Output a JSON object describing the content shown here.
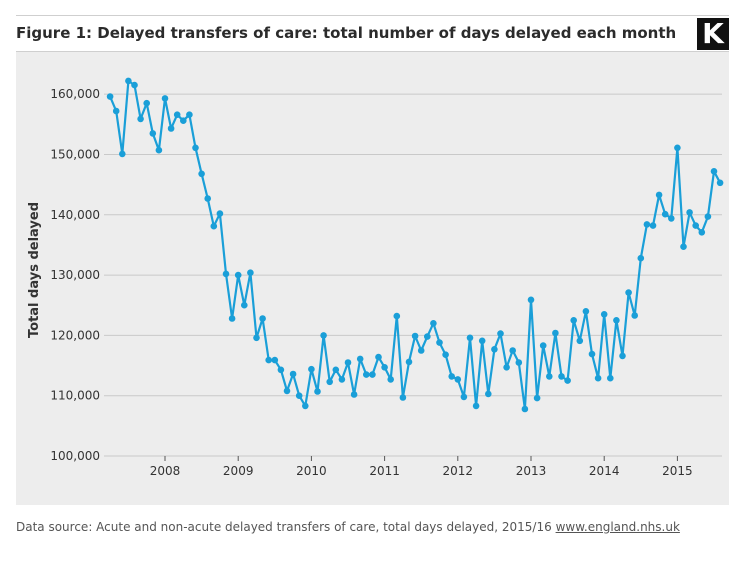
{
  "header": {
    "title": "Figure 1: Delayed transfers of care: total number of days delayed each month",
    "logo_letter": "K"
  },
  "footer": {
    "source_text": "Data source: Acute and non-acute delayed transfers of care, total days delayed, 2015/16",
    "link_text": "www.england.nhs.uk"
  },
  "colors": {
    "line": "#1a9fd8",
    "grid": "#c9c9c9",
    "background": "#ededed"
  },
  "chart_data": {
    "type": "line",
    "title": "Figure 1: Delayed transfers of care: total number of days delayed each month",
    "xlabel": "",
    "ylabel": "Total days delayed",
    "ylim": [
      100000,
      165000
    ],
    "yticks": [
      100000,
      110000,
      120000,
      130000,
      140000,
      150000,
      160000
    ],
    "ytick_labels": [
      "100,000",
      "110,000",
      "120,000",
      "130,000",
      "140,000",
      "150,000",
      "160,000"
    ],
    "xticks": [
      "2008",
      "2009",
      "2010",
      "2011",
      "2012",
      "2013",
      "2014",
      "2015"
    ],
    "start": "2007-04",
    "frequency": "monthly",
    "grid": true,
    "series": [
      {
        "name": "Total days delayed",
        "values": [
          159600,
          157200,
          150100,
          162200,
          161500,
          155900,
          158500,
          153500,
          150700,
          159300,
          154300,
          156600,
          155600,
          156600,
          151100,
          146800,
          142700,
          138100,
          140200,
          130200,
          122800,
          130000,
          125000,
          130400,
          119600,
          122800,
          115900,
          115900,
          114300,
          110800,
          113600,
          110000,
          108300,
          114400,
          110700,
          120000,
          112300,
          114300,
          112700,
          115500,
          110200,
          116100,
          113500,
          113500,
          116400,
          114700,
          112700,
          123200,
          109700,
          115600,
          119900,
          117500,
          119800,
          122000,
          118800,
          116800,
          113200,
          112700,
          109800,
          119600,
          108300,
          119100,
          110300,
          117700,
          120300,
          114700,
          117500,
          115500,
          107800,
          125900,
          109600,
          118300,
          113200,
          120400,
          113200,
          112500,
          122500,
          119100,
          124000,
          116900,
          112900,
          123500,
          112900,
          122500,
          116600,
          127100,
          123300,
          132800,
          138400,
          138200,
          143300,
          140100,
          139400,
          151100,
          134700,
          140400,
          138200,
          137100,
          139700,
          147200,
          145300
        ]
      }
    ]
  }
}
